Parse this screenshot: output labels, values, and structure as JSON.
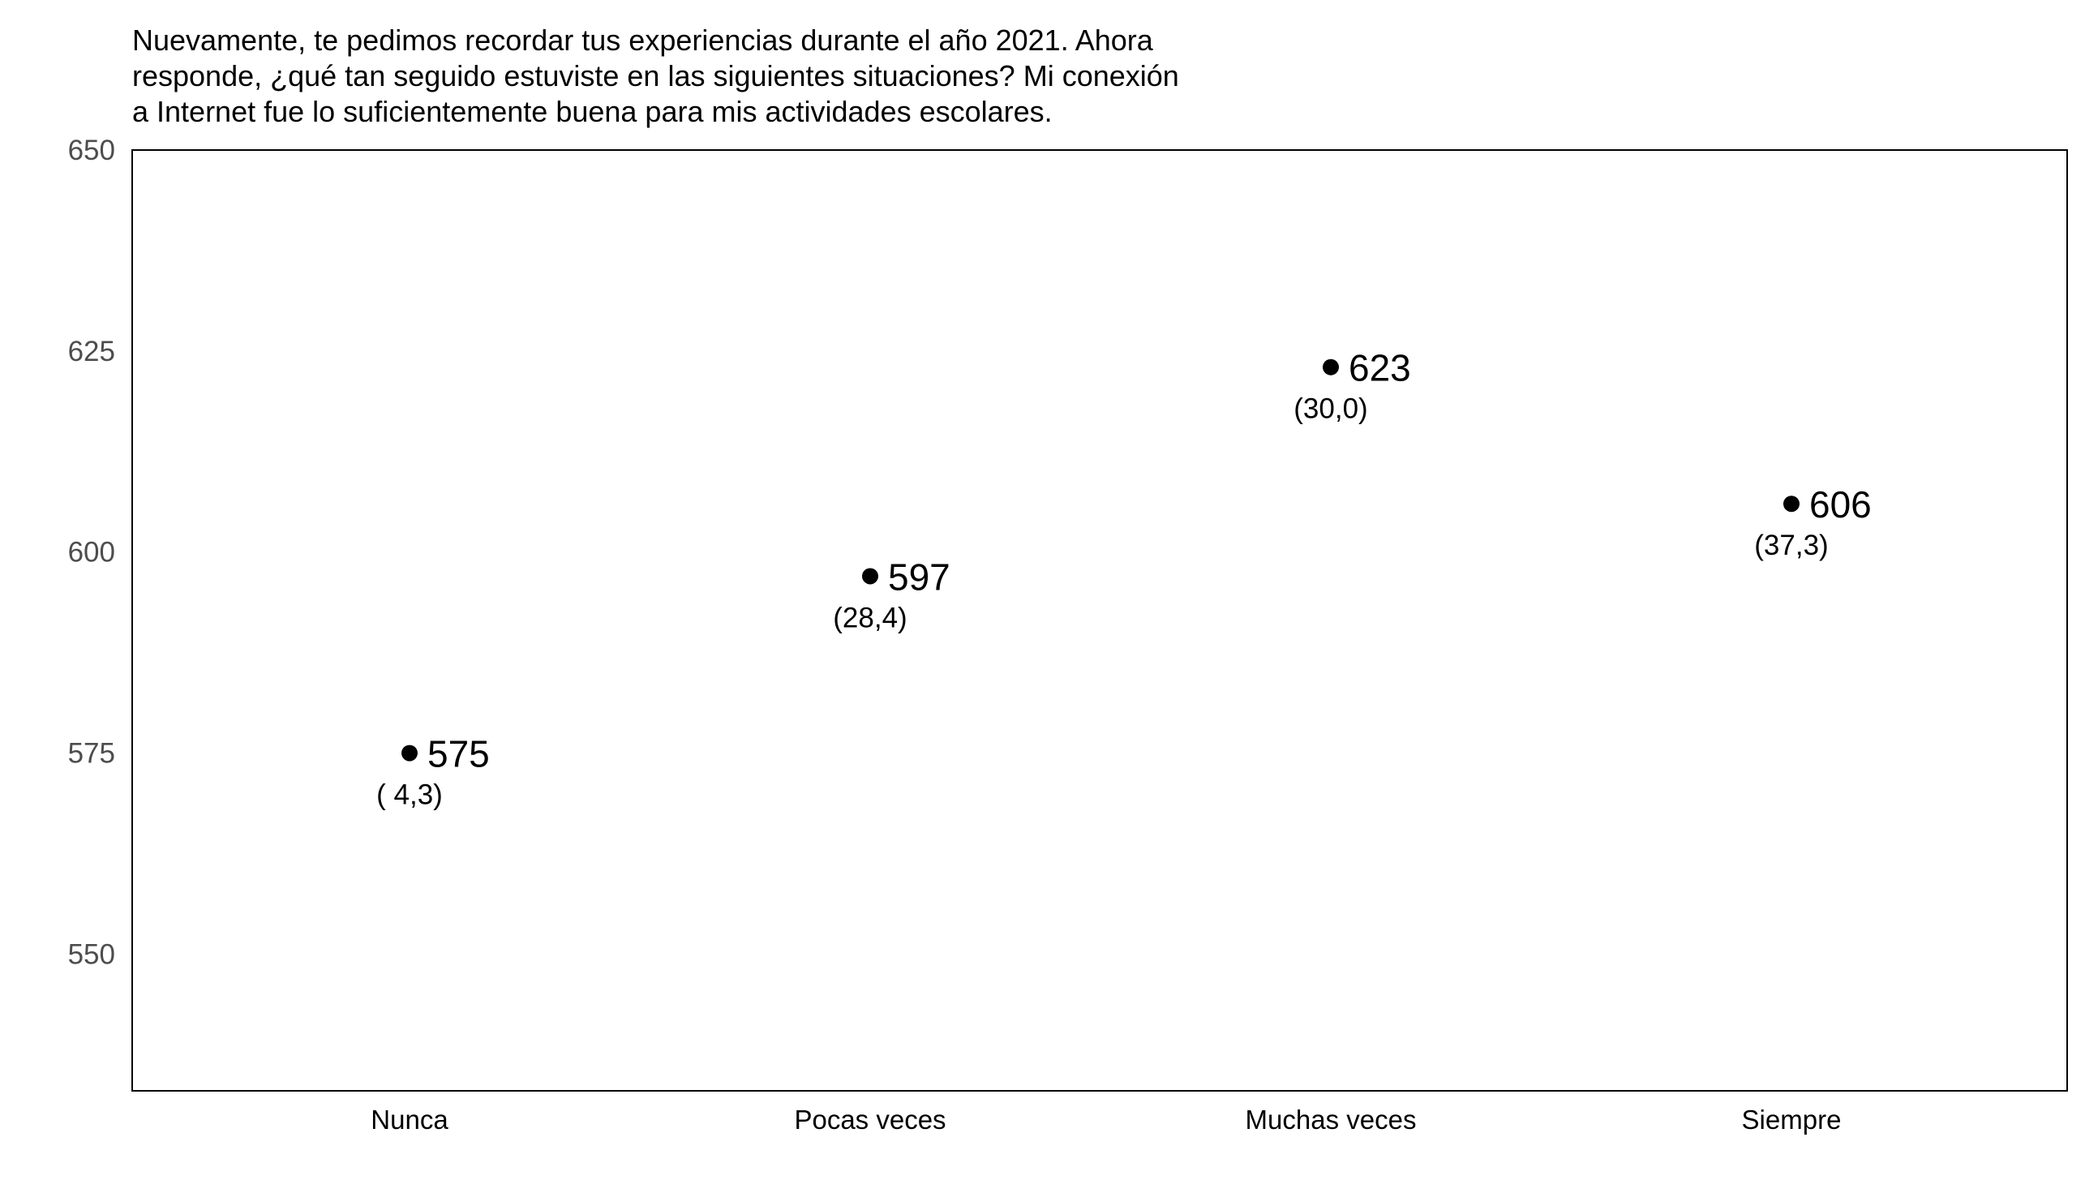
{
  "chart_data": {
    "type": "scatter",
    "title": "Nuevamente, te pedimos recordar tus experiencias durante el año 2021. Ahora\nresponde, ¿qué tan seguido estuviste en las siguientes situaciones? Mi conexión\na Internet fue lo suficientemente buena para mis actividades escolares.",
    "xlabel": "",
    "ylabel": "",
    "categories": [
      "Nunca",
      "Pocas veces",
      "Muchas veces",
      "Siempre"
    ],
    "values": [
      575,
      597,
      623,
      606
    ],
    "value_labels": [
      "575",
      "597",
      "623",
      "606"
    ],
    "percent_labels": [
      "( 4,3)",
      "(28,4)",
      "(30,0)",
      "(37,3)"
    ],
    "ylim": [
      533,
      650
    ],
    "yticks": [
      550,
      575,
      600,
      625,
      650
    ],
    "grid": false,
    "legend": "none",
    "colors": {
      "point": "#000000",
      "frame": "#000000",
      "tick_text": "#4d4d4d"
    }
  }
}
